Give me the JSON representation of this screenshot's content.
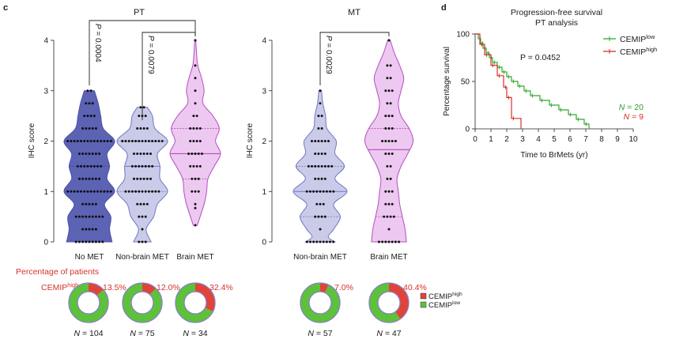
{
  "colors": {
    "no_met": "#4a51a8",
    "no_met_fill": "#5c63b5",
    "non_brain": "#7178c0",
    "non_brain_fill": "#c9cbe9",
    "brain": "#b54fc0",
    "brain_fill": "#edc8f0",
    "green": "#33a82e",
    "red": "#d6322b",
    "donut_green": "#5cc23a",
    "donut_red": "#e04438",
    "donut_ring": "#8a7ec8"
  },
  "chart_data": [
    {
      "id": "pt",
      "panel_letter": "c",
      "type": "violin",
      "title": "PT",
      "ylabel": "IHC score",
      "ylim": [
        0,
        4
      ],
      "yticks": [
        "0",
        "1",
        "2",
        "3",
        "4"
      ],
      "categories": [
        "No MET",
        "Non-brain MET",
        "Brain MET"
      ],
      "median": [
        1.5,
        1.5,
        1.75
      ],
      "quartiles": [
        [
          1,
          2
        ],
        [
          1,
          2
        ],
        [
          1.25,
          2.25
        ]
      ],
      "density": [
        [
          [
            0,
            0.9
          ],
          [
            0.25,
            0.8
          ],
          [
            0.5,
            0.85
          ],
          [
            0.75,
            0.6
          ],
          [
            1,
            1
          ],
          [
            1.25,
            0.7
          ],
          [
            1.5,
            0.8
          ],
          [
            1.75,
            0.7
          ],
          [
            2,
            1
          ],
          [
            2.25,
            0.55
          ],
          [
            2.5,
            0.45
          ],
          [
            2.75,
            0.35
          ],
          [
            3,
            0.2
          ]
        ],
        [
          [
            0,
            0.35
          ],
          [
            0.25,
            0.15
          ],
          [
            0.5,
            0.45
          ],
          [
            0.75,
            0.6
          ],
          [
            1,
            1
          ],
          [
            1.25,
            0.7
          ],
          [
            1.5,
            0.7
          ],
          [
            1.75,
            0.6
          ],
          [
            2,
            1
          ],
          [
            2.25,
            0.5
          ],
          [
            2.5,
            0.4
          ],
          [
            2.67,
            0.2
          ]
        ],
        [
          [
            0.33,
            0.08
          ],
          [
            0.75,
            0.35
          ],
          [
            1,
            0.45
          ],
          [
            1.25,
            0.5
          ],
          [
            1.5,
            0.75
          ],
          [
            1.75,
            1
          ],
          [
            2,
            0.8
          ],
          [
            2.25,
            0.95
          ],
          [
            2.5,
            0.7
          ],
          [
            2.75,
            0.3
          ],
          [
            3,
            0.35
          ],
          [
            3.25,
            0.25
          ],
          [
            3.5,
            0.1
          ],
          [
            3.75,
            0.05
          ],
          [
            4,
            0.02
          ]
        ]
      ],
      "points": [
        [
          0,
          0,
          0,
          0,
          0,
          0,
          0,
          0,
          0,
          0.25,
          0.25,
          0.25,
          0.25,
          0.25,
          0.5,
          0.5,
          0.5,
          0.5,
          0.5,
          0.5,
          0.5,
          0.5,
          0.5,
          0.75,
          0.75,
          0.75,
          0.75,
          0.75,
          1,
          1,
          1,
          1,
          1,
          1,
          1,
          1,
          1,
          1,
          1,
          1,
          1,
          1,
          1.25,
          1.25,
          1.25,
          1.25,
          1.25,
          1.25,
          1.25,
          1.5,
          1.5,
          1.5,
          1.5,
          1.5,
          1.5,
          1.5,
          1.5,
          1.75,
          1.75,
          1.75,
          1.75,
          1.75,
          1.75,
          1.75,
          2,
          2,
          2,
          2,
          2,
          2,
          2,
          2,
          2,
          2,
          2,
          2,
          2,
          2,
          2.25,
          2.25,
          2.25,
          2.25,
          2.25,
          2.5,
          2.5,
          2.5,
          2.5,
          2.75,
          2.75,
          2.75,
          3,
          3
        ],
        [
          0,
          0,
          0,
          0.25,
          0.5,
          0.5,
          0.5,
          0.75,
          0.75,
          0.75,
          0.75,
          1,
          1,
          1,
          1,
          1,
          1,
          1,
          1,
          1,
          1,
          1,
          1.25,
          1.25,
          1.25,
          1.25,
          1.25,
          1.25,
          1.5,
          1.5,
          1.5,
          1.5,
          1.5,
          1.5,
          1.5,
          1.75,
          1.75,
          1.75,
          1.75,
          1.75,
          1.75,
          2,
          2,
          2,
          2,
          2,
          2,
          2,
          2,
          2,
          2,
          2,
          2,
          2,
          2.25,
          2.25,
          2.25,
          2.25,
          2.5,
          2.5,
          2.5,
          2.67,
          2.67
        ],
        [
          0.33,
          0.67,
          0.75,
          1,
          1,
          1,
          1.25,
          1.25,
          1.25,
          1.5,
          1.5,
          1.5,
          1.5,
          1.75,
          1.75,
          1.75,
          1.75,
          1.75,
          2,
          2,
          2,
          2,
          2.25,
          2.25,
          2.25,
          2.25,
          2.5,
          2.5,
          2.75,
          3,
          3.25,
          3.5,
          4,
          4
        ]
      ],
      "brackets": [
        {
          "from": 0,
          "to": 2,
          "label": "P = 0.0004"
        },
        {
          "from": 1,
          "to": 2,
          "label": "P = 0.0079"
        }
      ]
    },
    {
      "id": "mt",
      "type": "violin",
      "title": "MT",
      "ylabel": "IHC score",
      "ylim": [
        0,
        4
      ],
      "yticks": [
        "0",
        "1",
        "2",
        "3",
        "4"
      ],
      "categories": [
        "Non-brain MET",
        "Brain MET"
      ],
      "median": [
        1,
        1.83
      ],
      "quartiles": [
        [
          0.5,
          1.5
        ],
        [
          0.5,
          2.25
        ]
      ],
      "density": [
        [
          [
            0,
            0.55
          ],
          [
            0.1,
            0.3
          ],
          [
            0.25,
            0.5
          ],
          [
            0.5,
            0.75
          ],
          [
            0.75,
            0.5
          ],
          [
            1,
            1
          ],
          [
            1.25,
            0.55
          ],
          [
            1.5,
            0.9
          ],
          [
            1.75,
            0.55
          ],
          [
            2,
            0.6
          ],
          [
            2.25,
            0.25
          ],
          [
            2.5,
            0.2
          ],
          [
            2.75,
            0.1
          ],
          [
            3,
            0.05
          ]
        ],
        [
          [
            0,
            0.65
          ],
          [
            0.25,
            0.6
          ],
          [
            0.5,
            0.5
          ],
          [
            0.75,
            0.4
          ],
          [
            1,
            0.35
          ],
          [
            1.25,
            0.3
          ],
          [
            1.5,
            0.45
          ],
          [
            1.75,
            0.7
          ],
          [
            2,
            0.9
          ],
          [
            2.25,
            0.75
          ],
          [
            2.5,
            0.45
          ],
          [
            2.75,
            0.35
          ],
          [
            3,
            0.45
          ],
          [
            3.25,
            0.55
          ],
          [
            3.5,
            0.4
          ],
          [
            3.75,
            0.2
          ],
          [
            4,
            0.05
          ]
        ]
      ],
      "points": [
        [
          0,
          0,
          0,
          0,
          0,
          0,
          0,
          0,
          0,
          0.25,
          0.5,
          0.5,
          0.5,
          0.5,
          0.75,
          0.75,
          0.75,
          1,
          1,
          1,
          1,
          1,
          1,
          1,
          1,
          1,
          1.25,
          1.25,
          1.25,
          1.25,
          1.5,
          1.5,
          1.5,
          1.5,
          1.5,
          1.5,
          1.5,
          1.5,
          1.75,
          1.75,
          1.75,
          1.75,
          2,
          2,
          2,
          2,
          2,
          2,
          2.25,
          2.25,
          2.5,
          2.5,
          2.75,
          3,
          3
        ],
        [
          0,
          0,
          0,
          0,
          0,
          0,
          0,
          0.25,
          0.5,
          0.5,
          0.5,
          0.5,
          0.75,
          0.75,
          0.75,
          1,
          1,
          1,
          1.25,
          1.25,
          1.5,
          1.5,
          1.75,
          1.75,
          1.75,
          2,
          2,
          2,
          2,
          2,
          2.25,
          2.25,
          2.25,
          2.5,
          2.5,
          2.5,
          2.75,
          2.75,
          3,
          3,
          3,
          3.25,
          3.25,
          3.5,
          3.5,
          4,
          4
        ]
      ],
      "brackets": [
        {
          "from": 0,
          "to": 1,
          "label": "P = 0.0029"
        }
      ]
    },
    {
      "id": "pfs",
      "panel_letter": "d",
      "type": "line",
      "title": "Progression-free survival",
      "subtitle": "PT analysis",
      "xlabel": "Time to BrMets (yr)",
      "ylabel": "Percentage survival",
      "xlim": [
        0,
        10
      ],
      "ylim": [
        0,
        100
      ],
      "xticks": [
        "0",
        "1",
        "2",
        "3",
        "4",
        "5",
        "6",
        "7",
        "8",
        "9",
        "10"
      ],
      "yticks": [
        "0",
        "50",
        "100"
      ],
      "annotation": "P = 0.0452",
      "legend": [
        {
          "base": "CEMIP",
          "sup": "low",
          "color": "#33a82e"
        },
        {
          "base": "CEMIP",
          "sup": "high",
          "color": "#d6322b"
        }
      ],
      "n_labels": [
        {
          "text": "N = 20",
          "color": "#2e9c2a"
        },
        {
          "text": "N = 9",
          "color": "#d6322b"
        }
      ],
      "series": [
        {
          "name": "CEMIP low",
          "color": "#33a82e",
          "x": [
            0,
            0.2,
            0.35,
            0.5,
            0.7,
            0.9,
            1.1,
            1.4,
            1.7,
            2.0,
            2.3,
            2.7,
            3.1,
            3.5,
            4.1,
            4.7,
            5.3,
            5.9,
            6.4,
            6.9,
            7.2
          ],
          "y": [
            100,
            95,
            90,
            85,
            80,
            75,
            70,
            65,
            60,
            55,
            50,
            45,
            40,
            35,
            30,
            25,
            20,
            15,
            10,
            5,
            0
          ]
        },
        {
          "name": "CEMIP high",
          "color": "#d6322b",
          "x": [
            0,
            0.3,
            0.6,
            1.0,
            1.4,
            1.8,
            2.0,
            2.3,
            2.9
          ],
          "y": [
            100,
            89,
            78,
            67,
            56,
            44,
            33,
            11,
            0
          ]
        }
      ]
    },
    {
      "id": "donuts",
      "type": "pie",
      "title": "Percentage of patients",
      "label_base": "CEMIP",
      "label_sup": "high",
      "legend": [
        {
          "base": "CEMIP",
          "sup": "high",
          "color": "#e04438"
        },
        {
          "base": "CEMIP",
          "sup": "low",
          "color": "#5cc23a"
        }
      ],
      "items": [
        {
          "high_pct": 13.5,
          "label": "13.5%",
          "n": "N = 104"
        },
        {
          "high_pct": 12.0,
          "label": "12.0%",
          "n": "N = 75"
        },
        {
          "high_pct": 32.4,
          "label": "32.4%",
          "n": "N = 34"
        },
        {
          "high_pct": 7.0,
          "label": "7.0%",
          "n": "N = 57"
        },
        {
          "high_pct": 40.4,
          "label": "40.4%",
          "n": "N = 47"
        }
      ]
    }
  ]
}
